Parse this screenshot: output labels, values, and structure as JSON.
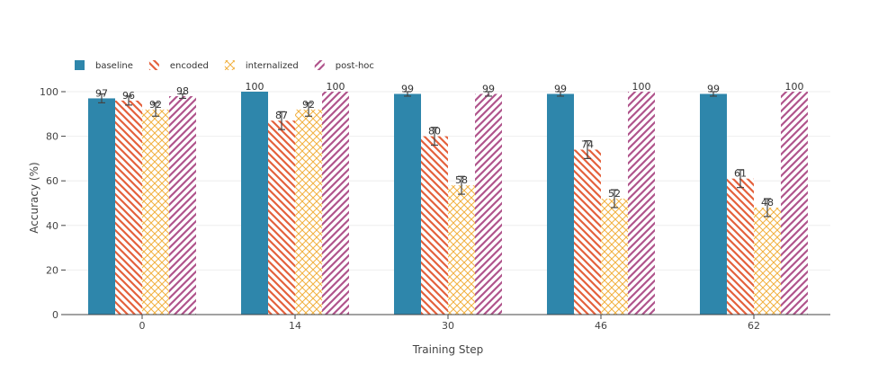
{
  "chart_data": {
    "type": "bar",
    "title": "",
    "xlabel": "Training Step",
    "ylabel": "Accuracy (%)",
    "ylim": [
      0,
      100
    ],
    "yticks": [
      0,
      20,
      40,
      60,
      80,
      100
    ],
    "grid": true,
    "legend_position": "top-left",
    "categories": [
      "0",
      "14",
      "30",
      "46",
      "62"
    ],
    "series": [
      {
        "name": "baseline",
        "pattern": "solid",
        "color": "#2e86ab",
        "values": [
          97,
          100,
          99,
          99,
          99
        ],
        "errors": [
          2,
          0,
          1,
          1,
          1
        ]
      },
      {
        "name": "encoded",
        "pattern": "diagonal-back",
        "color": "#e4613c",
        "values": [
          96,
          87,
          80,
          74,
          61
        ],
        "errors": [
          2,
          4,
          4,
          4,
          4
        ]
      },
      {
        "name": "internalized",
        "pattern": "crosshatch",
        "color": "#f2b13f",
        "values": [
          92,
          92,
          58,
          52,
          48
        ],
        "errors": [
          3,
          3,
          4,
          4,
          4
        ]
      },
      {
        "name": "post-hoc",
        "pattern": "diagonal-forward",
        "color": "#b0548c",
        "values": [
          98,
          100,
          99,
          100,
          100
        ],
        "errors": [
          1,
          0,
          1,
          0,
          0
        ]
      }
    ]
  }
}
